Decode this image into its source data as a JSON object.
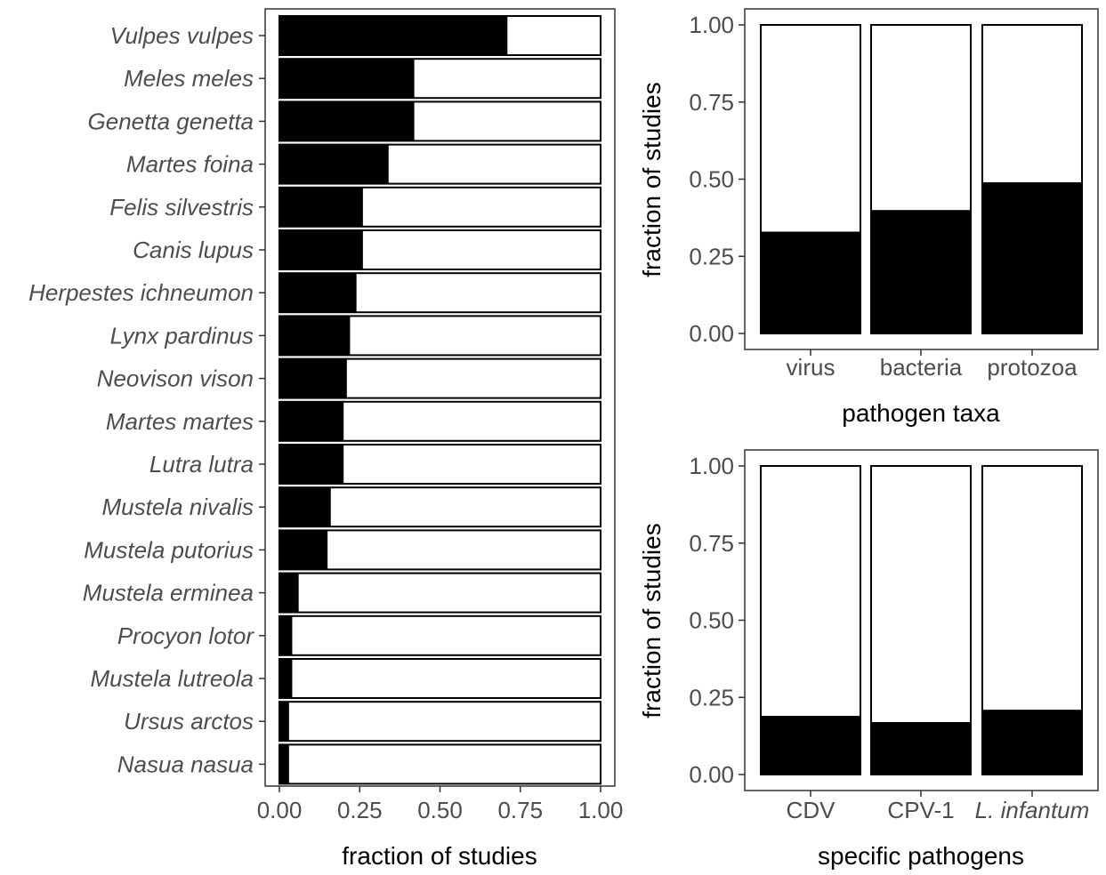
{
  "colors": {
    "filled": "#000000",
    "unfilled": "#ffffff",
    "panel_border": "#333333",
    "tick_text": "#4d4d4d"
  },
  "chart_data": [
    {
      "id": "species",
      "type": "bar",
      "orientation": "horizontal",
      "stacked": true,
      "title": "",
      "xlabel": "fraction of studies",
      "ylabel": "",
      "xlim": [
        0,
        1
      ],
      "x_ticks": [
        "0.00",
        "0.25",
        "0.50",
        "0.75",
        "1.00"
      ],
      "grid": false,
      "categories": [
        "Vulpes vulpes",
        "Meles meles",
        "Genetta genetta",
        "Martes foina",
        "Felis silvestris",
        "Canis lupus",
        "Herpestes ichneumon",
        "Lynx pardinus",
        "Neovison vison",
        "Martes martes",
        "Lutra lutra",
        "Mustela nivalis",
        "Mustela putorius",
        "Mustela erminea",
        "Procyon lotor",
        "Mustela lutreola",
        "Ursus arctos",
        "Nasua nasua"
      ],
      "category_style": "italic",
      "values": [
        0.71,
        0.42,
        0.42,
        0.34,
        0.26,
        0.26,
        0.24,
        0.22,
        0.21,
        0.2,
        0.2,
        0.16,
        0.15,
        0.06,
        0.04,
        0.04,
        0.03,
        0.03
      ],
      "total": 1.0
    },
    {
      "id": "pathogen_taxa",
      "type": "bar",
      "orientation": "vertical",
      "stacked": true,
      "title": "",
      "xlabel": "pathogen taxa",
      "ylabel": "fraction of studies",
      "ylim": [
        0,
        1
      ],
      "y_ticks": [
        "0.00",
        "0.25",
        "0.50",
        "0.75",
        "1.00"
      ],
      "grid": false,
      "categories": [
        "virus",
        "bacteria",
        "protozoa"
      ],
      "category_italic": [
        false,
        false,
        false
      ],
      "values": [
        0.33,
        0.4,
        0.49
      ],
      "total": 1.0
    },
    {
      "id": "specific_pathogens",
      "type": "bar",
      "orientation": "vertical",
      "stacked": true,
      "title": "",
      "xlabel": "specific pathogens",
      "ylabel": "fraction of studies",
      "ylim": [
        0,
        1
      ],
      "y_ticks": [
        "0.00",
        "0.25",
        "0.50",
        "0.75",
        "1.00"
      ],
      "grid": false,
      "categories": [
        "CDV",
        "CPV-1",
        "L. infantum"
      ],
      "category_italic": [
        false,
        false,
        true
      ],
      "values": [
        0.19,
        0.17,
        0.21
      ],
      "total": 1.0
    }
  ]
}
